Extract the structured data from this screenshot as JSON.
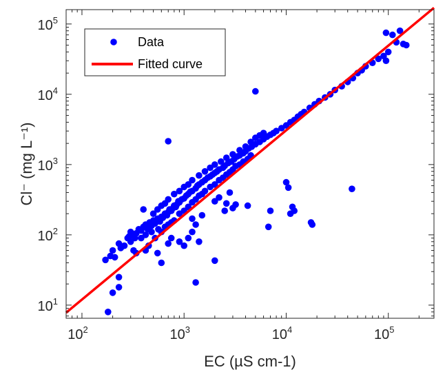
{
  "chart_data": {
    "type": "scatter",
    "x_scale": "log",
    "y_scale": "log",
    "xlim": [
      70,
      280000
    ],
    "ylim": [
      6.5,
      160000
    ],
    "xlabel": "EC (µS cm-1)",
    "ylabel": "Cl⁻ (mg L⁻¹)",
    "x_ticks": [
      {
        "base": "10",
        "exp": "2",
        "value": 100
      },
      {
        "base": "10",
        "exp": "3",
        "value": 1000
      },
      {
        "base": "10",
        "exp": "4",
        "value": 10000
      },
      {
        "base": "10",
        "exp": "5",
        "value": 100000
      }
    ],
    "y_ticks": [
      {
        "base": "10",
        "exp": "1",
        "value": 10
      },
      {
        "base": "10",
        "exp": "2",
        "value": 100
      },
      {
        "base": "10",
        "exp": "3",
        "value": 1000
      },
      {
        "base": "10",
        "exp": "4",
        "value": 10000
      },
      {
        "base": "10",
        "exp": "5",
        "value": 100000
      }
    ],
    "legend": {
      "position": "top-left",
      "entries": [
        {
          "label": "Data",
          "marker": "dot"
        },
        {
          "label": "Fitted curve",
          "marker": "line"
        }
      ]
    },
    "colors": {
      "data": "#0000ff",
      "fit": "#ff0000",
      "axis": "#262626"
    },
    "grid": false,
    "fit_line": {
      "points": [
        [
          70,
          7.8
        ],
        [
          280000,
          170000
        ]
      ]
    },
    "series": [
      {
        "name": "Data",
        "points": [
          [
            180,
            8
          ],
          [
            200,
            15
          ],
          [
            230,
            18
          ],
          [
            230,
            25
          ],
          [
            170,
            44
          ],
          [
            190,
            50
          ],
          [
            200,
            60
          ],
          [
            210,
            48
          ],
          [
            230,
            75
          ],
          [
            240,
            65
          ],
          [
            260,
            70
          ],
          [
            280,
            90
          ],
          [
            290,
            95
          ],
          [
            300,
            110
          ],
          [
            320,
            100
          ],
          [
            340,
            105
          ],
          [
            360,
            120
          ],
          [
            380,
            115
          ],
          [
            400,
            130
          ],
          [
            420,
            140
          ],
          [
            440,
            120
          ],
          [
            460,
            150
          ],
          [
            480,
            135
          ],
          [
            500,
            160
          ],
          [
            520,
            145
          ],
          [
            550,
            170
          ],
          [
            580,
            155
          ],
          [
            600,
            180
          ],
          [
            620,
            175
          ],
          [
            650,
            200
          ],
          [
            680,
            190
          ],
          [
            700,
            210
          ],
          [
            720,
            230
          ],
          [
            750,
            220
          ],
          [
            780,
            240
          ],
          [
            800,
            260
          ],
          [
            830,
            250
          ],
          [
            850,
            270
          ],
          [
            880,
            300
          ],
          [
            900,
            290
          ],
          [
            950,
            320
          ],
          [
            1000,
            330
          ],
          [
            1050,
            360
          ],
          [
            1100,
            380
          ],
          [
            1150,
            410
          ],
          [
            1200,
            420
          ],
          [
            1300,
            460
          ],
          [
            1350,
            500
          ],
          [
            1400,
            520
          ],
          [
            1500,
            560
          ],
          [
            1600,
            600
          ],
          [
            1700,
            650
          ],
          [
            1800,
            680
          ],
          [
            1900,
            720
          ],
          [
            2000,
            760
          ],
          [
            2100,
            800
          ],
          [
            2200,
            850
          ],
          [
            2400,
            900
          ],
          [
            2500,
            960
          ],
          [
            2700,
            1050
          ],
          [
            2900,
            1100
          ],
          [
            3100,
            1200
          ],
          [
            3300,
            1300
          ],
          [
            3500,
            1350
          ],
          [
            3800,
            1450
          ],
          [
            4000,
            1550
          ],
          [
            4300,
            1700
          ],
          [
            4600,
            1800
          ],
          [
            5000,
            1950
          ],
          [
            5500,
            2100
          ],
          [
            6000,
            2300
          ],
          [
            6500,
            2500
          ],
          [
            7000,
            2650
          ],
          [
            7500,
            2800
          ],
          [
            8000,
            3000
          ],
          [
            9000,
            3300
          ],
          [
            10000,
            3600
          ],
          [
            11000,
            4000
          ],
          [
            12000,
            4300
          ],
          [
            13000,
            4800
          ],
          [
            14000,
            5200
          ],
          [
            15000,
            5600
          ],
          [
            17000,
            6400
          ],
          [
            19000,
            7200
          ],
          [
            21000,
            8000
          ],
          [
            24000,
            9000
          ],
          [
            27000,
            10000
          ],
          [
            30000,
            11500
          ],
          [
            35000,
            13000
          ],
          [
            40000,
            15000
          ],
          [
            45000,
            17000
          ],
          [
            50000,
            20000
          ],
          [
            55000,
            22000
          ],
          [
            60000,
            25000
          ],
          [
            70000,
            28000
          ],
          [
            80000,
            32000
          ],
          [
            90000,
            35000
          ],
          [
            100000,
            40000
          ],
          [
            110000,
            70000
          ],
          [
            120000,
            55000
          ],
          [
            130000,
            80000
          ],
          [
            140000,
            52000
          ],
          [
            150000,
            50000
          ],
          [
            95000,
            30000
          ],
          [
            95000,
            75000
          ],
          [
            300,
            80
          ],
          [
            330,
            90
          ],
          [
            380,
            90
          ],
          [
            420,
            100
          ],
          [
            480,
            110
          ],
          [
            520,
            90
          ],
          [
            560,
            120
          ],
          [
            600,
            110
          ],
          [
            650,
            130
          ],
          [
            700,
            140
          ],
          [
            750,
            150
          ],
          [
            800,
            160
          ],
          [
            900,
            200
          ],
          [
            1000,
            220
          ],
          [
            1100,
            250
          ],
          [
            1200,
            290
          ],
          [
            1300,
            320
          ],
          [
            1400,
            360
          ],
          [
            1500,
            380
          ],
          [
            1600,
            420
          ],
          [
            1800,
            480
          ],
          [
            2000,
            520
          ],
          [
            2200,
            600
          ],
          [
            2400,
            650
          ],
          [
            2600,
            720
          ],
          [
            2800,
            780
          ],
          [
            3000,
            850
          ],
          [
            3200,
            950
          ],
          [
            3500,
            1000
          ],
          [
            3800,
            1100
          ],
          [
            4200,
            1200
          ],
          [
            4500,
            1350
          ],
          [
            500,
            200
          ],
          [
            550,
            230
          ],
          [
            600,
            260
          ],
          [
            650,
            280
          ],
          [
            700,
            320
          ],
          [
            800,
            380
          ],
          [
            900,
            420
          ],
          [
            1000,
            480
          ],
          [
            1100,
            520
          ],
          [
            1200,
            600
          ],
          [
            1400,
            700
          ],
          [
            1600,
            800
          ],
          [
            1800,
            900
          ],
          [
            2000,
            1000
          ],
          [
            2300,
            1100
          ],
          [
            2600,
            1250
          ],
          [
            3000,
            1400
          ],
          [
            3500,
            1600
          ],
          [
            4000,
            1800
          ],
          [
            4500,
            2100
          ],
          [
            5000,
            2400
          ],
          [
            5500,
            2600
          ],
          [
            6000,
            2800
          ],
          [
            2600,
            280
          ],
          [
            1400,
            80
          ],
          [
            700,
            75
          ],
          [
            900,
            80
          ],
          [
            1100,
            90
          ],
          [
            2500,
            220
          ],
          [
            3000,
            240
          ],
          [
            3200,
            270
          ],
          [
            4200,
            260
          ],
          [
            1200,
            170
          ],
          [
            1500,
            190
          ],
          [
            2000,
            300
          ],
          [
            2200,
            340
          ],
          [
            2800,
            400
          ],
          [
            400,
            230
          ],
          [
            450,
            70
          ],
          [
            550,
            55
          ],
          [
            600,
            40
          ],
          [
            750,
            90
          ],
          [
            1000,
            70
          ],
          [
            1200,
            110
          ],
          [
            1300,
            140
          ],
          [
            320,
            60
          ],
          [
            340,
            55
          ],
          [
            420,
            60
          ],
          [
            700,
            2150
          ],
          [
            1300,
            21
          ],
          [
            2000,
            43
          ],
          [
            5000,
            11000
          ],
          [
            6700,
            130
          ],
          [
            7000,
            220
          ],
          [
            10000,
            560
          ],
          [
            10500,
            470
          ],
          [
            11000,
            200
          ],
          [
            11500,
            250
          ],
          [
            12000,
            220
          ],
          [
            17500,
            150
          ],
          [
            18000,
            140
          ],
          [
            44000,
            450
          ]
        ]
      }
    ]
  }
}
